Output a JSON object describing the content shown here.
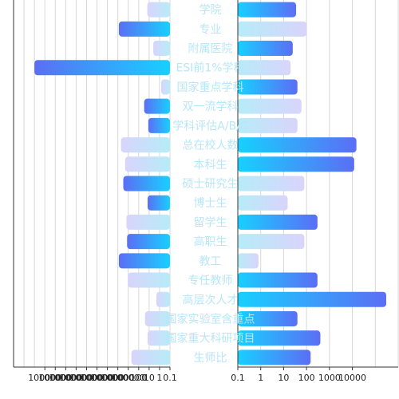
{
  "chart_data": {
    "type": "bar",
    "orientation": "horizontal",
    "layout": "butterfly",
    "categories": [
      "学院",
      "专业",
      "附属医院",
      "ESI前1%学科",
      "国家重点学科",
      "双一流学科",
      "学科评估A/B/C",
      "总在校人数",
      "本科生",
      "硕士研究生",
      "博士生",
      "留学生",
      "高职生",
      "教工",
      "专任教师",
      "高层次人才",
      "国家实验室含重点",
      "国家重大科研项目",
      "生师比"
    ],
    "series": [
      {
        "side": "left",
        "values": [
          15,
          8000,
          4,
          1000000000000,
          0.7,
          30,
          12,
          5000,
          2000,
          3000,
          14,
          1500,
          1300,
          8000,
          1100,
          2,
          25,
          14,
          500
        ],
        "styles": [
          "light",
          "dark",
          "light",
          "dark",
          "light",
          "dark",
          "dark",
          "light",
          "light",
          "dark",
          "dark",
          "light",
          "dark",
          "dark",
          "light",
          "light",
          "light",
          "light",
          "light"
        ]
      },
      {
        "side": "right",
        "values": [
          35,
          100,
          25,
          20,
          40,
          60,
          40,
          15000,
          12000,
          80,
          15,
          300,
          80,
          0.8,
          300,
          300000,
          40,
          400,
          150
        ],
        "styles": [
          "dark",
          "light",
          "dark",
          "light",
          "dark",
          "light",
          "light",
          "dark",
          "dark",
          "light",
          "light",
          "dark",
          "light",
          "light",
          "dark",
          "dark",
          "dark",
          "dark",
          "dark"
        ]
      }
    ],
    "x_scale": "log",
    "left_axis": {
      "direction": "reversed",
      "xlim": [
        0.1,
        100000000000000
      ],
      "tick_labels": [
        "100000",
        "100000",
        "100000",
        "100000",
        "100000",
        "100000",
        "100000",
        "100000",
        "100000",
        "100",
        "10",
        "1",
        "0.1"
      ]
    },
    "right_axis": {
      "xlim": [
        0.1,
        1000000
      ],
      "tick_labels": [
        "0.1",
        "1",
        "10",
        "100",
        "1000",
        "10000"
      ]
    },
    "grid": true,
    "colors": {
      "dark_start": "#5b6ef5",
      "dark_end": "#17d0ff",
      "light_start": "#d9d4fb",
      "light_end": "#b6ecf8",
      "label": "#b9e6f7",
      "grid": "#d8d8d8",
      "axis": "#333333"
    }
  }
}
